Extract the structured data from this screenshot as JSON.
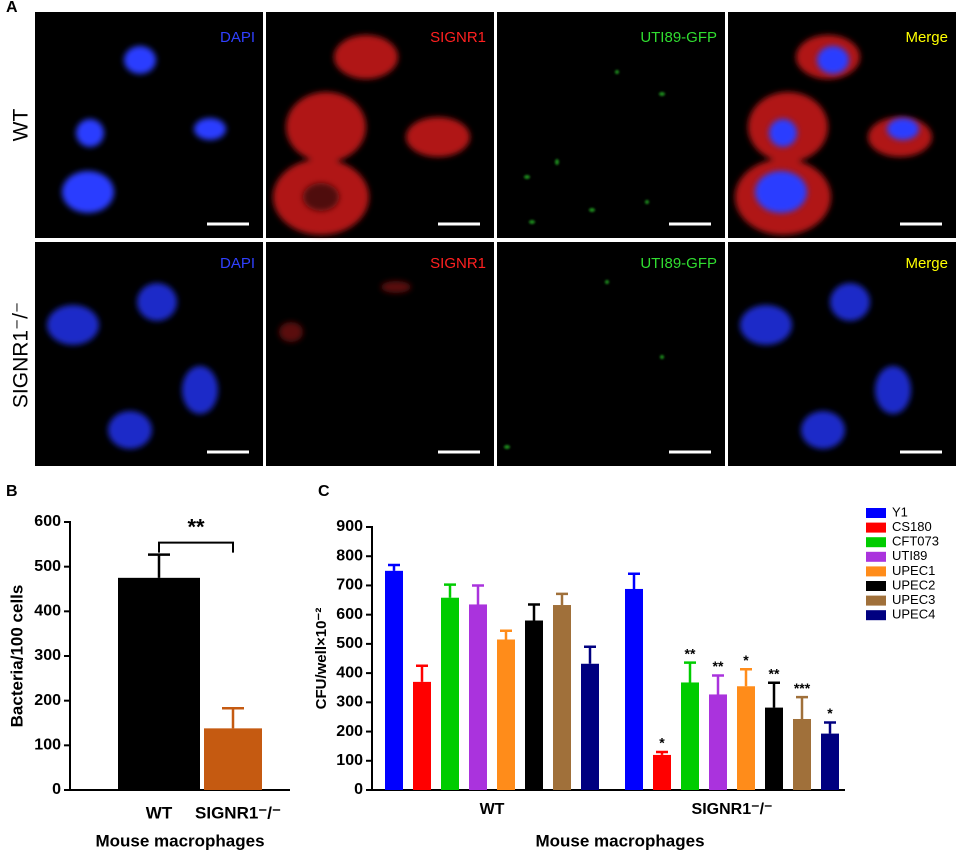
{
  "panel_a": {
    "label": "A",
    "rows": [
      {
        "label": "WT",
        "channels": [
          "DAPI",
          "SIGNR1",
          "UTI89-GFP",
          "Merge"
        ]
      },
      {
        "label": "SIGNR1⁻/⁻",
        "channels": [
          "DAPI",
          "SIGNR1",
          "UTI89-GFP",
          "Merge"
        ]
      }
    ]
  },
  "chart_data": [
    {
      "type": "bar",
      "panel_label": "B",
      "ylabel": "Bacteria/100 cells",
      "xlabel": "Mouse macrophages",
      "categories": [
        "WT",
        "SIGNR1⁻/⁻"
      ],
      "values": [
        475,
        138
      ],
      "errors": [
        52,
        45
      ],
      "colors": [
        "#000000",
        "#c55a11"
      ],
      "significance": "**",
      "ylim": [
        0,
        600
      ],
      "yticks": [
        0,
        100,
        200,
        300,
        400,
        500,
        600
      ]
    },
    {
      "type": "grouped_bar",
      "panel_label": "C",
      "ylabel": "CFU/well×10⁻²",
      "xlabel": "Mouse macrophages",
      "categories": [
        "WT",
        "SIGNR1⁻/⁻"
      ],
      "series": [
        {
          "name": "Y1",
          "color": "#0000ff",
          "values": [
            750,
            688
          ],
          "errors": [
            20,
            52
          ],
          "significance": [
            null,
            null
          ]
        },
        {
          "name": "CS180",
          "color": "#ff0000",
          "values": [
            370,
            120
          ],
          "errors": [
            55,
            10
          ],
          "significance": [
            null,
            "*"
          ]
        },
        {
          "name": "CFT073",
          "color": "#00cc00",
          "values": [
            658,
            368
          ],
          "errors": [
            45,
            68
          ],
          "significance": [
            null,
            "**"
          ]
        },
        {
          "name": "UTI89",
          "color": "#aa33dd",
          "values": [
            635,
            327
          ],
          "errors": [
            65,
            65
          ],
          "significance": [
            null,
            "**"
          ]
        },
        {
          "name": "UPEC1",
          "color": "#ff8c1a",
          "values": [
            515,
            355
          ],
          "errors": [
            30,
            58
          ],
          "significance": [
            null,
            "*"
          ]
        },
        {
          "name": "UPEC2",
          "color": "#000000",
          "values": [
            580,
            282
          ],
          "errors": [
            55,
            85
          ],
          "significance": [
            null,
            "**"
          ]
        },
        {
          "name": "UPEC3",
          "color": "#a0703a",
          "values": [
            633,
            243
          ],
          "errors": [
            38,
            75
          ],
          "significance": [
            null,
            "***"
          ]
        },
        {
          "name": "UPEC4",
          "color": "#000080",
          "values": [
            432,
            193
          ],
          "errors": [
            58,
            38
          ],
          "significance": [
            null,
            "*"
          ]
        }
      ],
      "ylim": [
        0,
        900
      ],
      "yticks": [
        0,
        100,
        200,
        300,
        400,
        500,
        600,
        700,
        800,
        900
      ]
    }
  ]
}
